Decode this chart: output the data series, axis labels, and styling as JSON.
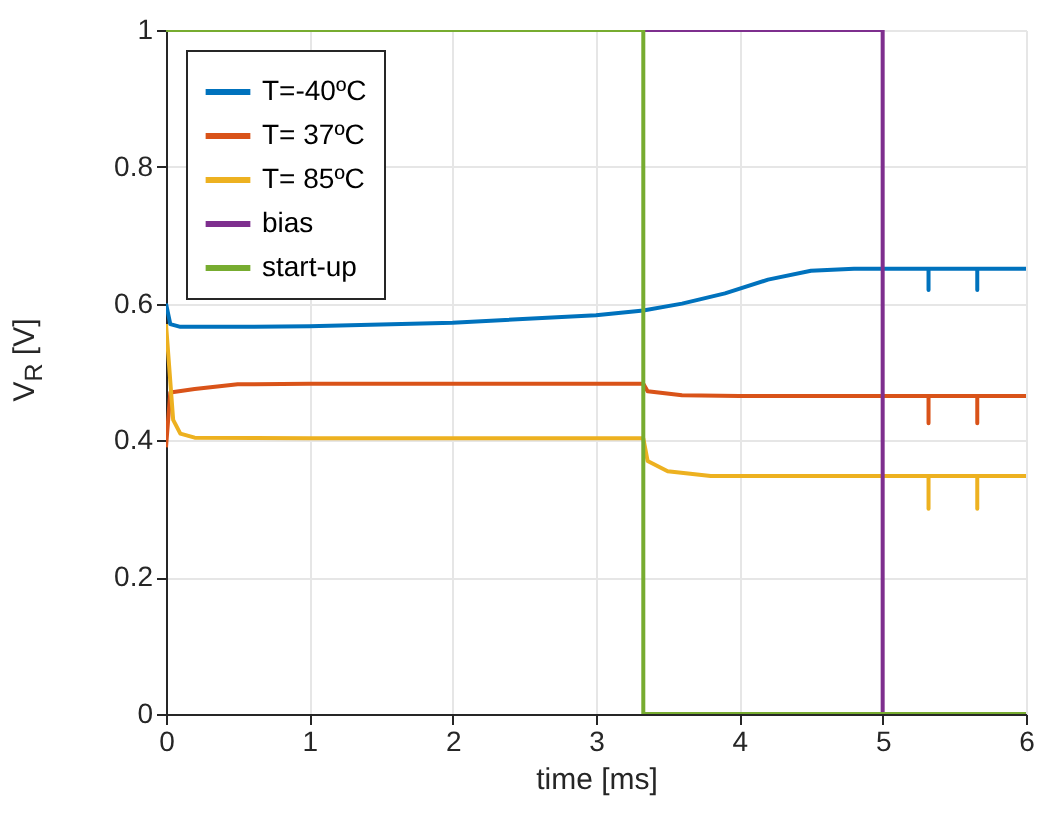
{
  "chart_data": {
    "type": "line",
    "xlabel": "time [ms]",
    "ylabel": "V$_{R}$ [V]",
    "xlim": [
      0,
      6
    ],
    "ylim": [
      0,
      1
    ],
    "xticks": [
      0,
      1,
      2,
      3,
      4,
      5,
      6
    ],
    "yticks": [
      0,
      0.2,
      0.4,
      0.6,
      0.8,
      1
    ],
    "grid": true,
    "legend": "top left",
    "series": [
      {
        "name": "T=-40ºC",
        "color": "#0072bd",
        "x": [
          0,
          0.03,
          0.1,
          0.5,
          1,
          2,
          3,
          3.33,
          3.6,
          3.9,
          4.2,
          4.5,
          4.8,
          5.32,
          5.32,
          5.32,
          5.66,
          5.66,
          5.66,
          6
        ],
        "values": [
          0.6,
          0.57,
          0.566,
          0.566,
          0.567,
          0.572,
          0.583,
          0.59,
          0.6,
          0.615,
          0.635,
          0.648,
          0.651,
          0.651,
          0.62,
          0.651,
          0.651,
          0.62,
          0.651,
          0.651
        ]
      },
      {
        "name": "T= 37ºC",
        "color": "#d95319",
        "x": [
          0,
          0.03,
          0.2,
          0.5,
          1,
          3.33,
          3.36,
          3.6,
          4,
          5.32,
          5.32,
          5.32,
          5.66,
          5.66,
          5.66,
          6
        ],
        "values": [
          0.39,
          0.47,
          0.475,
          0.482,
          0.483,
          0.483,
          0.472,
          0.466,
          0.465,
          0.465,
          0.425,
          0.465,
          0.465,
          0.425,
          0.465,
          0.465
        ]
      },
      {
        "name": "T= 85ºC",
        "color": "#edb120",
        "x": [
          0,
          0.05,
          0.1,
          0.2,
          1,
          3.33,
          3.36,
          3.5,
          3.8,
          5.32,
          5.32,
          5.32,
          5.66,
          5.66,
          5.66,
          6
        ],
        "values": [
          0.57,
          0.43,
          0.41,
          0.404,
          0.403,
          0.403,
          0.37,
          0.355,
          0.348,
          0.348,
          0.3,
          0.348,
          0.348,
          0.3,
          0.348,
          0.348
        ]
      },
      {
        "name": "bias",
        "color": "#7e2f8e",
        "x": [
          3.33,
          5,
          5
        ],
        "values": [
          1,
          1,
          0
        ]
      },
      {
        "name": "start-up",
        "color": "#77ac30",
        "x": [
          0,
          3.33,
          3.33,
          6
        ],
        "values": [
          1,
          1,
          0,
          0
        ]
      }
    ]
  }
}
